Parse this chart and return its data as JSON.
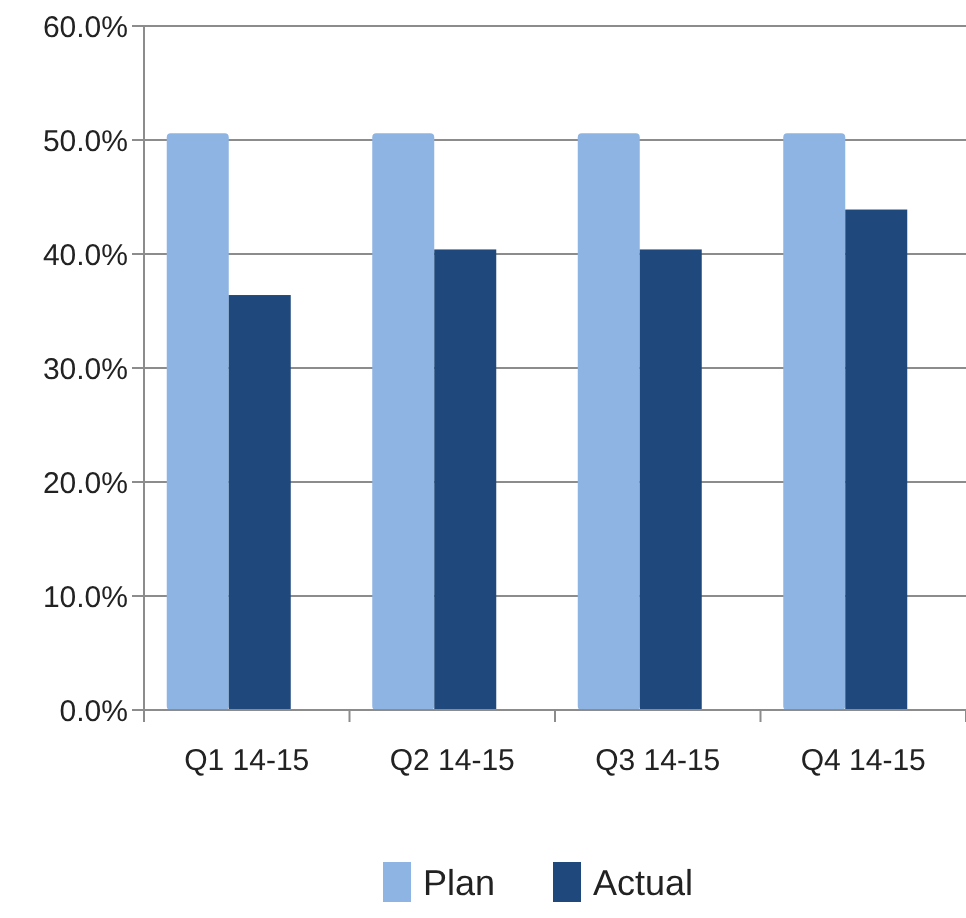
{
  "chart_data": {
    "type": "bar",
    "categories": [
      "Q1 14-15",
      "Q2 14-15",
      "Q3 14-15",
      "Q4 14-15"
    ],
    "series": [
      {
        "name": "Plan",
        "color": "#8eb4e3",
        "values": [
          50.6,
          50.6,
          50.6,
          50.6
        ]
      },
      {
        "name": "Actual",
        "color": "#1f497d",
        "values": [
          36.4,
          40.4,
          40.4,
          43.9
        ]
      }
    ],
    "ylim": [
      0,
      60
    ],
    "yticks": [
      {
        "value": 0,
        "label": "0.0%"
      },
      {
        "value": 10,
        "label": "10.0%"
      },
      {
        "value": 20,
        "label": "20.0%"
      },
      {
        "value": 30,
        "label": "30.0%"
      },
      {
        "value": 40,
        "label": "40.0%"
      },
      {
        "value": 50,
        "label": "50.0%"
      },
      {
        "value": 60,
        "label": "60.0%"
      }
    ],
    "grid": "y",
    "legend": "bottom"
  }
}
